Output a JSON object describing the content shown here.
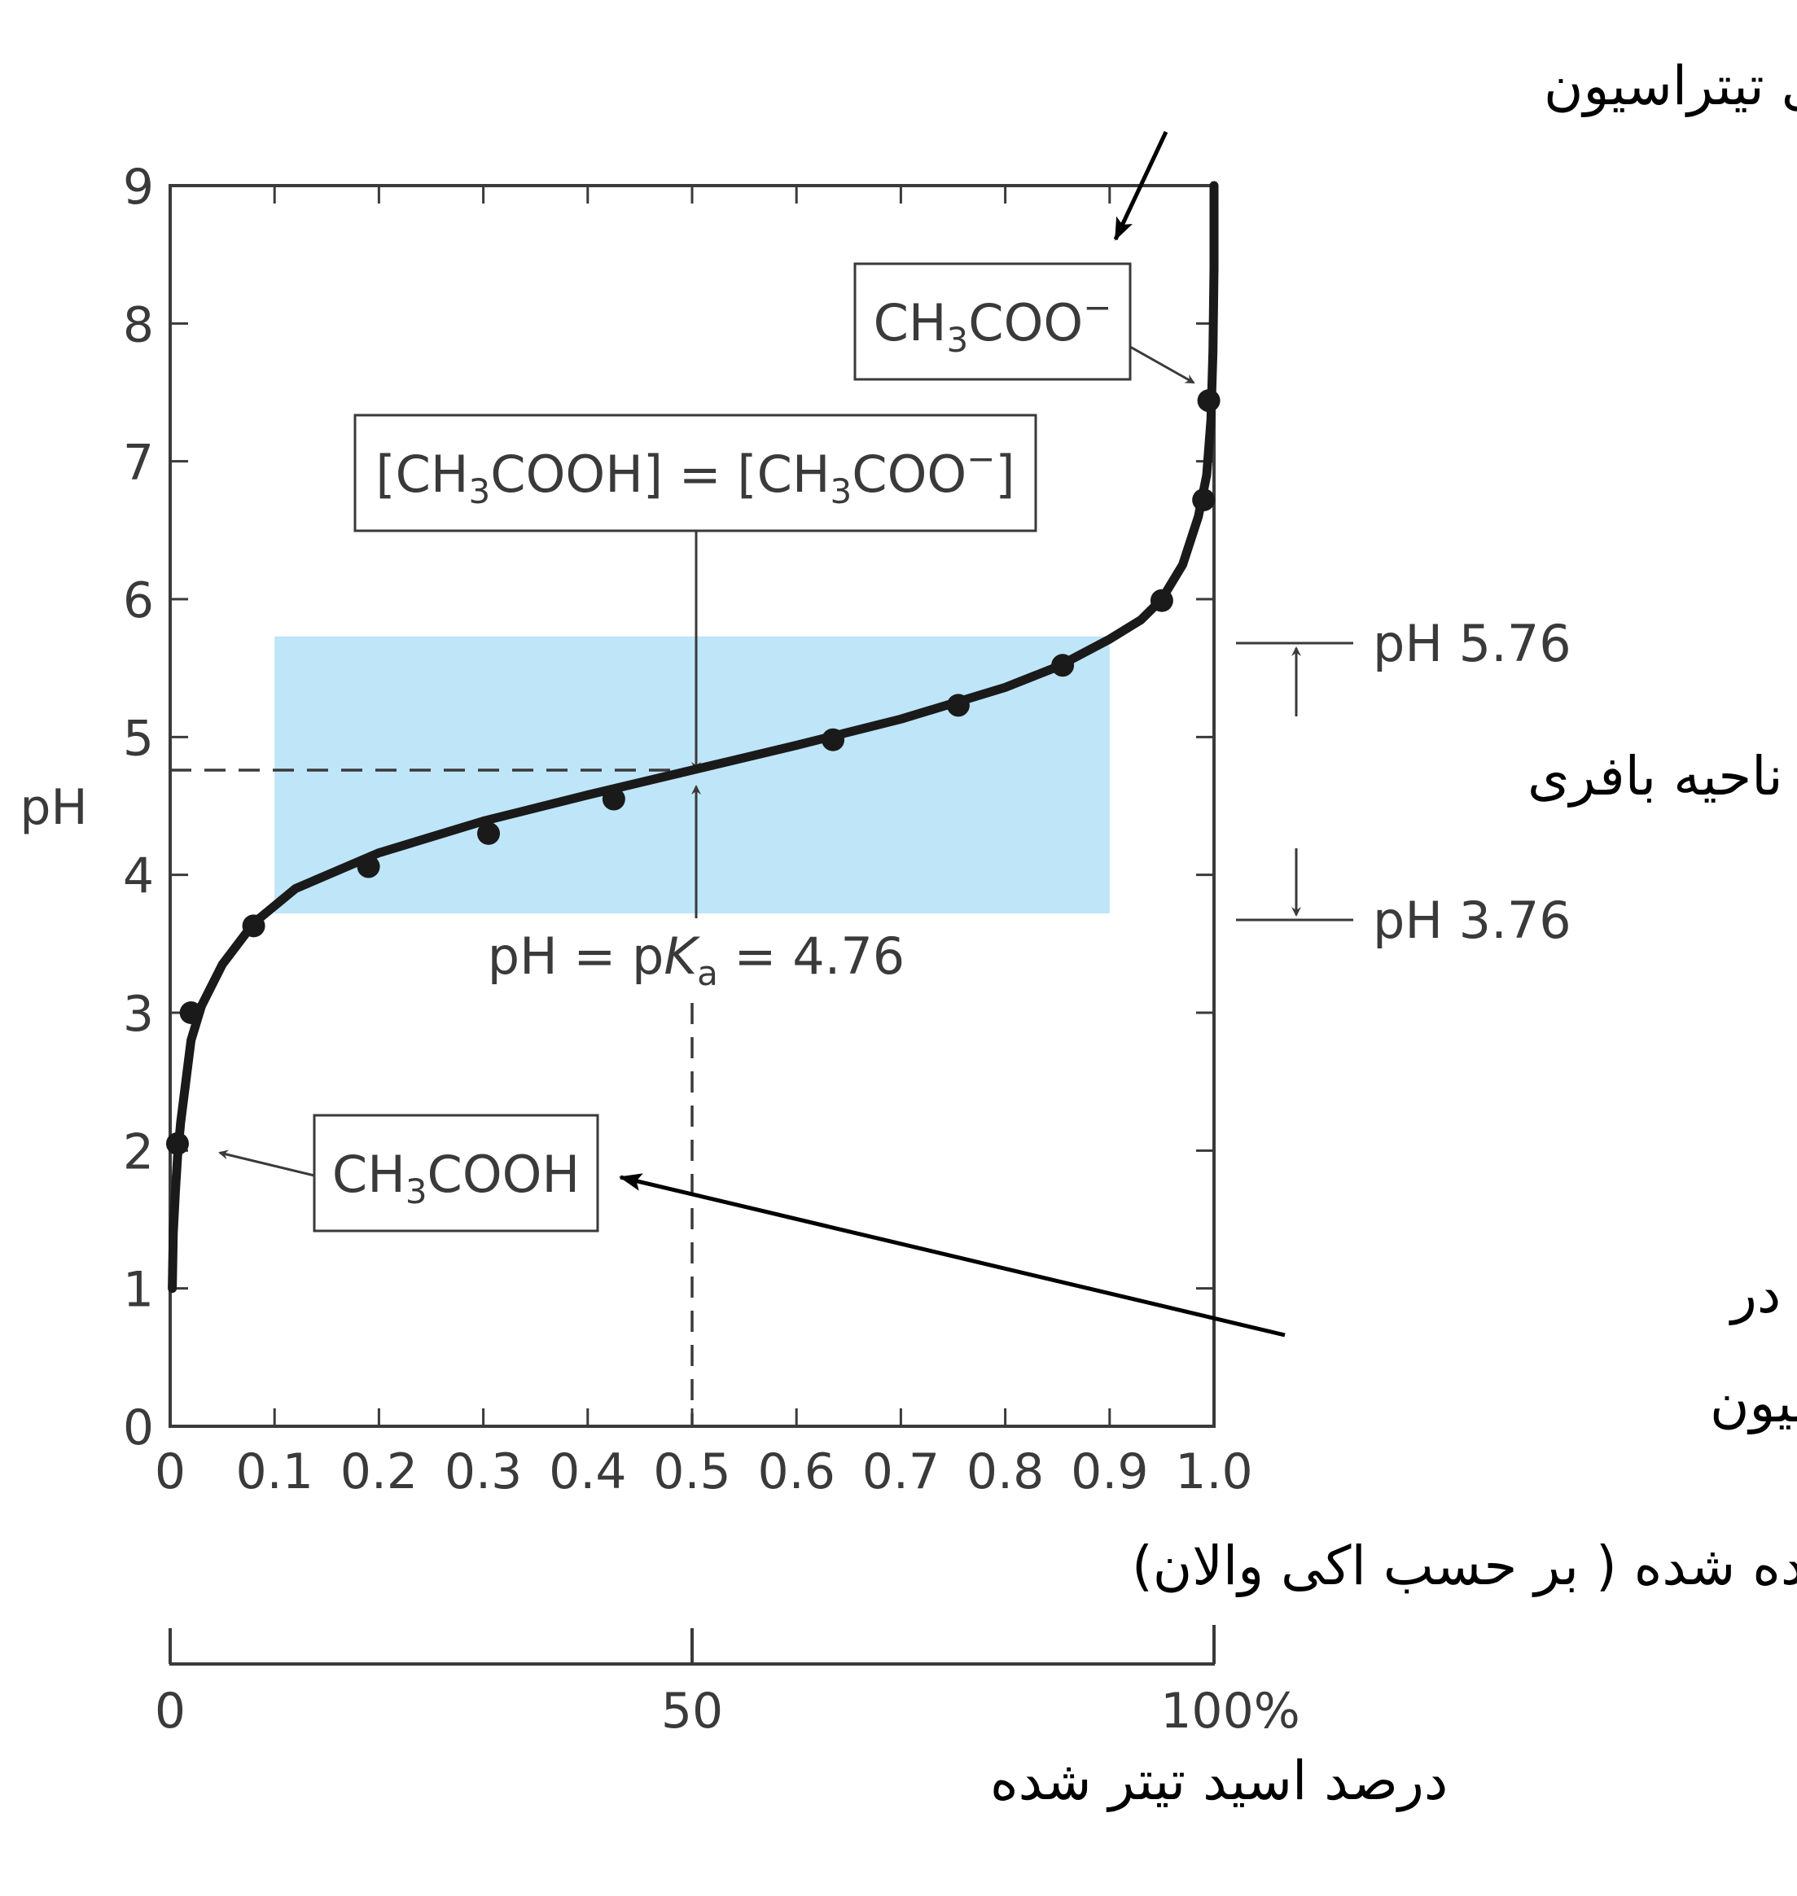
{
  "chart_data": {
    "type": "line",
    "ylabel": "pH",
    "xlabel": "OH⁻ افزوده شده ( بر حسب اکی والان)",
    "xlabel2": "درصد اسید تیتر شده",
    "xlim": [
      0,
      1.0
    ],
    "ylim": [
      0,
      9
    ],
    "x_ticks": [
      "0",
      "0.1",
      "0.2",
      "0.3",
      "0.4",
      "0.5",
      "0.6",
      "0.7",
      "0.8",
      "0.9",
      "1.0"
    ],
    "y_ticks": [
      "0",
      "1",
      "2",
      "3",
      "4",
      "5",
      "6",
      "7",
      "8",
      "9"
    ],
    "x2_ticks": [
      "0",
      "50",
      "100%"
    ],
    "curve": {
      "x": [
        0.002,
        0.003,
        0.005,
        0.007,
        0.01,
        0.015,
        0.02,
        0.03,
        0.05,
        0.08,
        0.12,
        0.2,
        0.3,
        0.4,
        0.5,
        0.6,
        0.7,
        0.8,
        0.85,
        0.9,
        0.93,
        0.95,
        0.97,
        0.985,
        0.993,
        0.997,
        0.999,
        1.0,
        1.0
      ],
      "y": [
        1.0,
        1.4,
        1.7,
        1.95,
        2.2,
        2.5,
        2.8,
        3.05,
        3.35,
        3.65,
        3.9,
        4.16,
        4.39,
        4.58,
        4.76,
        4.94,
        5.13,
        5.36,
        5.51,
        5.71,
        5.85,
        6.0,
        6.25,
        6.6,
        6.9,
        7.3,
        7.8,
        8.4,
        9.0
      ]
    },
    "points": {
      "x": [
        0.007,
        0.02,
        0.08,
        0.19,
        0.305,
        0.425,
        0.635,
        0.755,
        0.855,
        0.95,
        0.99,
        0.995
      ],
      "y": [
        2.05,
        3.0,
        3.63,
        4.06,
        4.3,
        4.55,
        4.98,
        5.23,
        5.52,
        5.99,
        6.72,
        7.44
      ]
    },
    "buffer_region": {
      "x0": 0.1,
      "x1": 0.9,
      "y0": 3.72,
      "y1": 5.73,
      "color": "#bfe5f8"
    },
    "pka_line": {
      "x": 0.5,
      "y": 4.76
    },
    "annotations": {
      "box_equal": "[CH3COOH] = [CH3COO−]",
      "box_acid": "CH3COOH",
      "box_base": "CH3COO−",
      "pka_label": "pH = pKa = 4.76",
      "ph_high": "pH 5.76",
      "ph_low": "pH 3.76",
      "buffer_label": "ناحیه بافری",
      "end_label": "شکل غالب اسید در انتهای تیتراسیون",
      "start_label_line1": "شکل غالب اسید در",
      "start_label_line2": "ابتدای تیتراسیون"
    },
    "colors": {
      "curve": "#1a1a1a",
      "axis": "#3a3a3a",
      "buffer": "#bfe5f8"
    },
    "grid": false,
    "legend": "none"
  }
}
